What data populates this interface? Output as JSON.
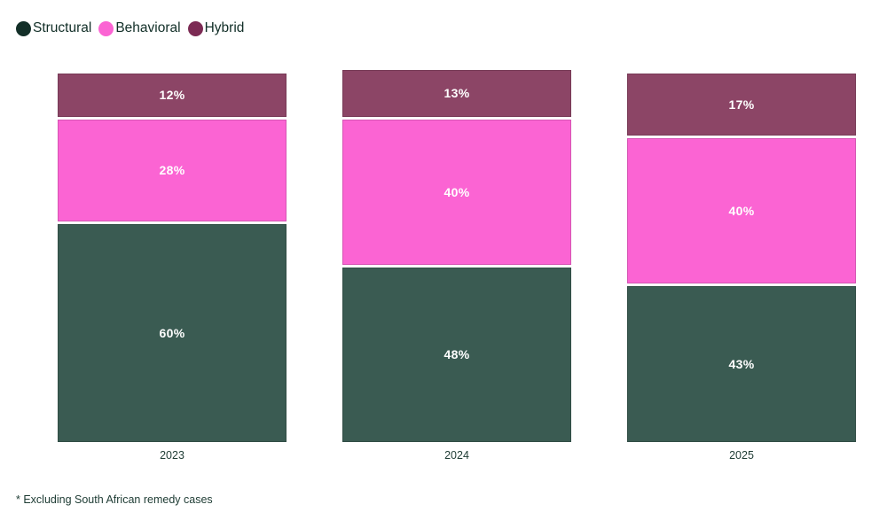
{
  "legend": {
    "items": [
      {
        "id": "structural",
        "label": "Structural",
        "swatch_color": "#132f28"
      },
      {
        "id": "behavioral",
        "label": "Behavioral",
        "swatch_color": "#fb64d3"
      },
      {
        "id": "hybrid",
        "label": "Hybrid",
        "swatch_color": "#7c2b54"
      }
    ]
  },
  "chart_data": {
    "type": "bar",
    "stacked": true,
    "orientation": "vertical",
    "categories": [
      "2023",
      "2024",
      "2025"
    ],
    "series": [
      {
        "name": "Structural",
        "color": "#3a5b52",
        "values": [
          60,
          48,
          43
        ]
      },
      {
        "name": "Behavioral",
        "color": "#fb64d3",
        "values": [
          28,
          40,
          40
        ]
      },
      {
        "name": "Hybrid",
        "color": "#8c4566",
        "values": [
          12,
          13,
          17
        ]
      }
    ],
    "value_suffix": "%",
    "ylim": [
      0,
      101
    ],
    "grid": false,
    "legend_position": "top-left",
    "title": "",
    "xlabel": "",
    "ylabel": ""
  },
  "footnote": "* Excluding South African remedy cases",
  "colors": {
    "text": "#1d3b33",
    "segment_label": "#ffffff",
    "background": "#ffffff"
  }
}
